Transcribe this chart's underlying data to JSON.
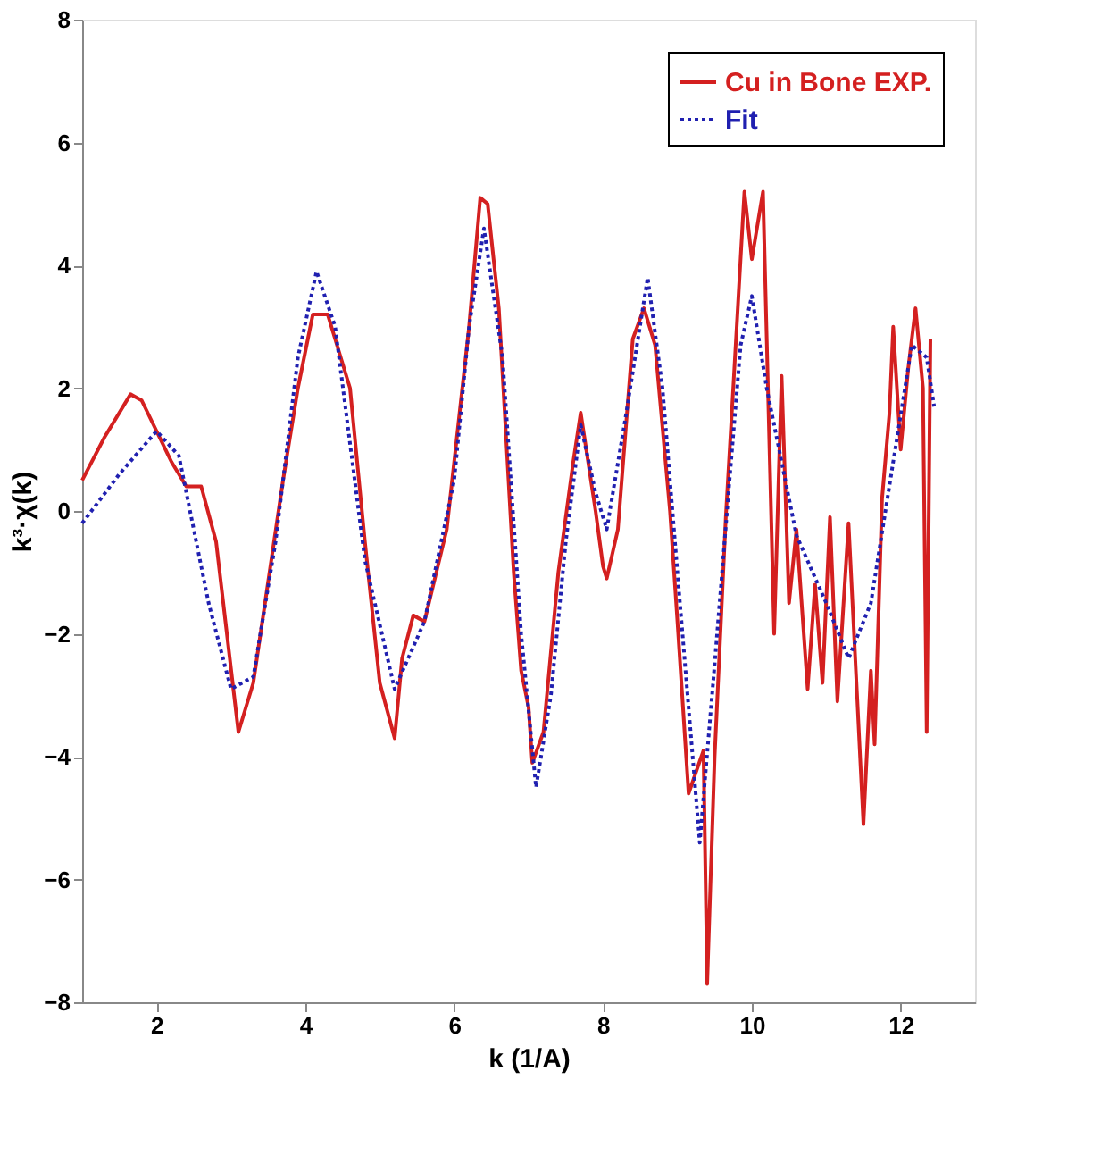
{
  "chart_data": {
    "type": "line",
    "xlabel": "k (1/A)",
    "ylabel": "k³·χ(k)",
    "xlim": [
      1,
      13
    ],
    "ylim": [
      -8,
      8
    ],
    "xticks": [
      2,
      4,
      6,
      8,
      10,
      12
    ],
    "yticks": [
      -8,
      -6,
      -4,
      -2,
      0,
      2,
      4,
      6,
      8
    ],
    "grid": false,
    "legend": "top right",
    "marker": "none",
    "series": [
      {
        "name": "Cu in Bone EXP.",
        "color": "#d42020",
        "line_style": "solid",
        "x": [
          1.0,
          1.3,
          1.65,
          1.8,
          2.2,
          2.4,
          2.6,
          2.8,
          3.1,
          3.3,
          3.7,
          3.9,
          4.1,
          4.3,
          4.6,
          4.8,
          5.0,
          5.2,
          5.3,
          5.45,
          5.6,
          5.9,
          6.2,
          6.35,
          6.45,
          6.6,
          6.8,
          6.9,
          7.0,
          7.05,
          7.2,
          7.4,
          7.6,
          7.7,
          7.9,
          8.0,
          8.05,
          8.2,
          8.4,
          8.55,
          8.7,
          8.9,
          9.0,
          9.15,
          9.35,
          9.4,
          9.5,
          9.65,
          9.75,
          9.9,
          10.0,
          10.15,
          10.3,
          10.4,
          10.5,
          10.6,
          10.75,
          10.85,
          10.95,
          11.05,
          11.15,
          11.3,
          11.5,
          11.6,
          11.65,
          11.75,
          11.85,
          11.9,
          12.0,
          12.1,
          12.2,
          12.3,
          12.35,
          12.4
        ],
        "values": [
          0.5,
          1.2,
          1.9,
          1.8,
          0.8,
          0.4,
          0.4,
          -0.5,
          -3.6,
          -2.8,
          0.5,
          2.0,
          3.2,
          3.2,
          2.0,
          -0.5,
          -2.8,
          -3.7,
          -2.4,
          -1.7,
          -1.8,
          -0.3,
          3.0,
          5.1,
          5.0,
          3.3,
          -1.0,
          -2.6,
          -3.2,
          -4.1,
          -3.6,
          -1.0,
          0.8,
          1.6,
          0.0,
          -0.9,
          -1.1,
          -0.3,
          2.8,
          3.3,
          2.7,
          0.0,
          -1.8,
          -4.6,
          -3.9,
          -7.7,
          -4.0,
          -0.1,
          2.0,
          5.2,
          4.1,
          5.2,
          -2.0,
          2.2,
          -1.5,
          -0.3,
          -2.9,
          -1.2,
          -2.8,
          -0.1,
          -3.1,
          -0.2,
          -5.1,
          -2.6,
          -3.8,
          0.2,
          1.6,
          3.0,
          1.0,
          2.3,
          3.3,
          2.0,
          -3.6,
          2.8
        ]
      },
      {
        "name": "Fit",
        "color": "#2020b0",
        "line_style": "dotted",
        "x": [
          1.0,
          1.5,
          2.0,
          2.3,
          2.7,
          3.0,
          3.3,
          3.6,
          3.9,
          4.15,
          4.4,
          4.8,
          5.2,
          5.6,
          6.0,
          6.2,
          6.4,
          6.65,
          6.9,
          7.1,
          7.3,
          7.5,
          7.7,
          7.9,
          8.05,
          8.3,
          8.6,
          8.8,
          9.0,
          9.3,
          9.5,
          9.7,
          9.85,
          10.0,
          10.2,
          10.6,
          11.0,
          11.3,
          11.6,
          11.9,
          12.15,
          12.35,
          12.45
        ],
        "values": [
          -0.2,
          0.6,
          1.3,
          0.9,
          -1.5,
          -2.9,
          -2.7,
          -0.5,
          2.5,
          3.9,
          3.0,
          -0.8,
          -2.9,
          -1.8,
          0.5,
          3.0,
          4.6,
          2.5,
          -2.0,
          -4.5,
          -3.0,
          -0.5,
          1.4,
          0.3,
          -0.3,
          1.5,
          3.8,
          2.0,
          -1.0,
          -5.4,
          -2.5,
          0.5,
          2.7,
          3.5,
          2.0,
          -0.4,
          -1.5,
          -2.4,
          -1.5,
          0.8,
          2.7,
          2.5,
          1.7
        ]
      }
    ]
  }
}
